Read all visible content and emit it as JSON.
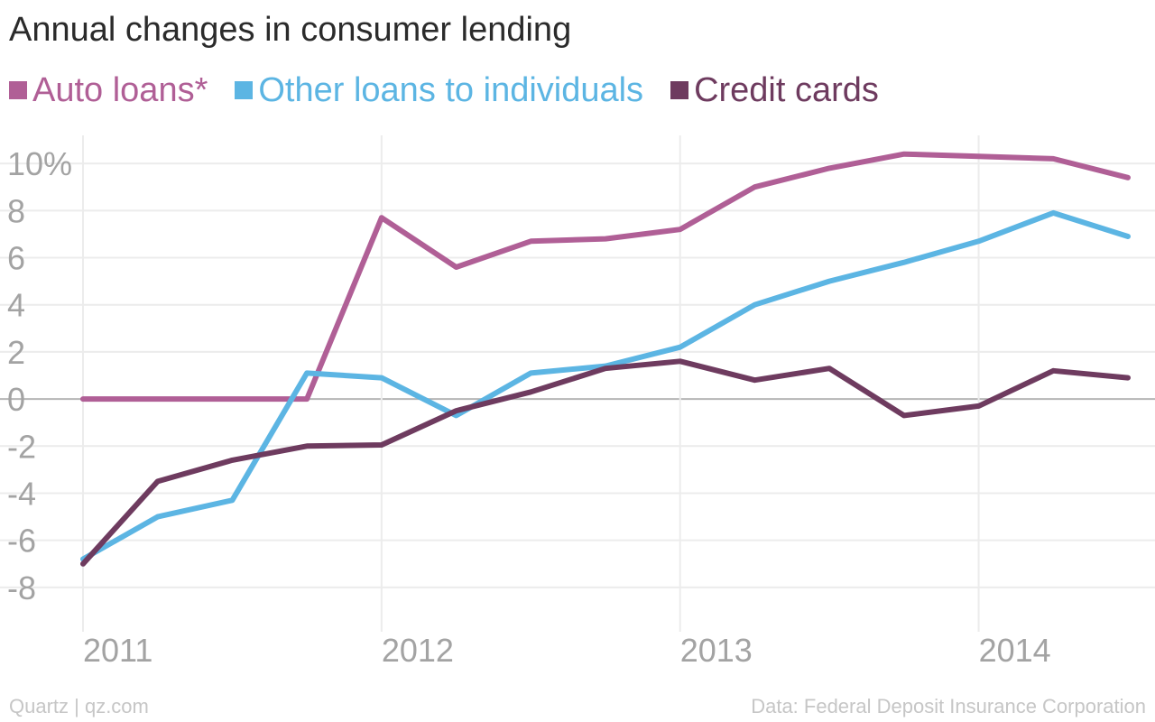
{
  "chart_data": {
    "type": "line",
    "title": "Annual changes in consumer lending",
    "xlabel": "",
    "ylabel": "",
    "x": [
      2011.0,
      2011.25,
      2011.5,
      2011.75,
      2012.0,
      2012.25,
      2012.5,
      2012.75,
      2013.0,
      2013.25,
      2013.5,
      2013.75,
      2014.0,
      2014.25,
      2014.5
    ],
    "series": [
      {
        "name": "Auto loans*",
        "color": "#b05f96",
        "values": [
          0,
          0,
          0,
          0,
          7.7,
          5.6,
          6.7,
          6.8,
          7.2,
          9.0,
          9.8,
          10.4,
          10.3,
          10.2,
          9.4
        ]
      },
      {
        "name": "Other loans to individuals",
        "color": "#5cb5e3",
        "values": [
          -6.8,
          -5.0,
          -4.3,
          1.1,
          0.9,
          -0.7,
          1.1,
          1.4,
          2.2,
          4.0,
          5.0,
          5.8,
          6.7,
          7.9,
          6.9
        ]
      },
      {
        "name": "Credit cards",
        "color": "#6e3b5f",
        "values": [
          -7.0,
          -3.5,
          -2.6,
          -2.0,
          -1.95,
          -0.5,
          0.3,
          1.3,
          1.6,
          0.8,
          1.3,
          -0.7,
          -0.3,
          1.2,
          0.9
        ]
      }
    ],
    "ylim": [
      -9.5,
      11.5
    ],
    "xlim": [
      2011,
      2014.5
    ],
    "y_ticks": [
      10,
      8,
      6,
      4,
      2,
      0,
      -2,
      -4,
      -6,
      -8
    ],
    "y_tick_labels": [
      "10%",
      "8",
      "6",
      "4",
      "2",
      "0",
      "-2",
      "-4",
      "-6",
      "-8"
    ],
    "x_ticks": [
      2011,
      2012,
      2013,
      2014
    ],
    "x_tick_labels": [
      "2011",
      "2012",
      "2013",
      "2014"
    ],
    "grid": true,
    "legend": "top-left"
  },
  "footer": {
    "source_left": "Quartz | qz.com",
    "source_right": "Data: Federal Deposit Insurance Corporation"
  }
}
